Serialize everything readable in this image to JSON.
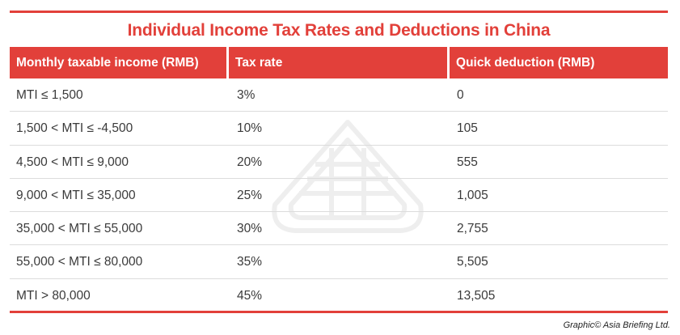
{
  "title": "Individual Income Tax Rates and Deductions in China",
  "table": {
    "headers": [
      "Monthly taxable income (RMB)",
      "Tax rate",
      "Quick deduction (RMB)"
    ],
    "rows": [
      [
        "MTI ≤ 1,500",
        "3%",
        "0"
      ],
      [
        "1,500 < MTI ≤ -4,500",
        "10%",
        "105"
      ],
      [
        "4,500 < MTI ≤ 9,000",
        "20%",
        "555"
      ],
      [
        "9,000 < MTI ≤ 35,000",
        "25%",
        "1,005"
      ],
      [
        "35,000 < MTI ≤ 55,000",
        "30%",
        "2,755"
      ],
      [
        "55,000 < MTI ≤ 80,000",
        "35%",
        "5,505"
      ],
      [
        "MTI > 80,000",
        "45%",
        "13,505"
      ]
    ]
  },
  "credit": "Graphic© Asia Briefing Ltd.",
  "colors": {
    "accent": "#e2403a",
    "text": "#3a3a3a",
    "row_divider": "#dcdcdc"
  },
  "watermark_icon": "asia-briefing-logo-watermark"
}
